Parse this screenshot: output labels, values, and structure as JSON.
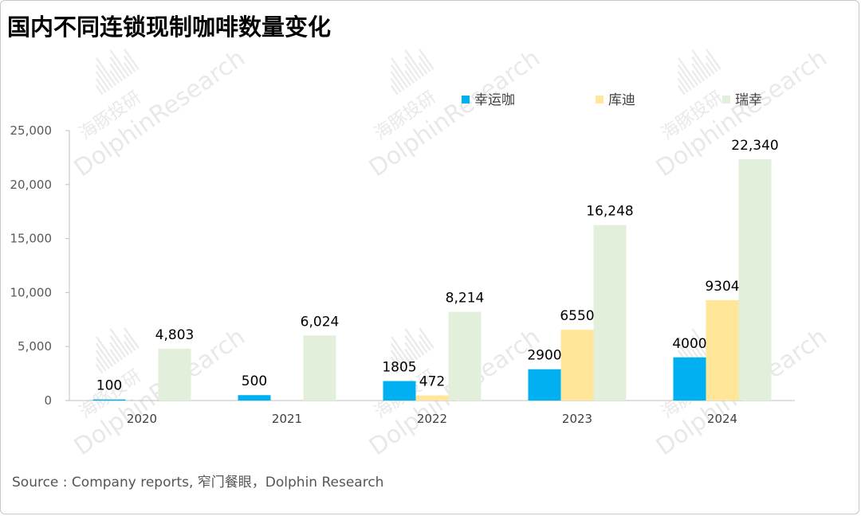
{
  "title": "国内不同连锁现制咖啡数量变化",
  "source": "Source : Company reports, 窄门餐眼，Dolphin Research",
  "watermark": {
    "cn": "海豚投研",
    "en": "DolphinResearch"
  },
  "chart_data": {
    "type": "bar",
    "title": "国内不同连锁现制咖啡数量变化",
    "categories": [
      "2020",
      "2021",
      "2022",
      "2023",
      "2024"
    ],
    "ylim": [
      0,
      25000
    ],
    "yticks": [
      0,
      5000,
      10000,
      15000,
      20000,
      25000
    ],
    "ytick_labels": [
      "0",
      "5,000",
      "10,000",
      "15,000",
      "20,000",
      "25,000"
    ],
    "grid": false,
    "legend_position": "top-right",
    "series": [
      {
        "name": "幸运咖",
        "color": "#00b0f0",
        "values": [
          100,
          500,
          1805,
          2900,
          4000
        ],
        "labels": [
          "100",
          "500",
          "1805",
          "2900",
          "4000"
        ]
      },
      {
        "name": "库迪",
        "color": "#ffe699",
        "values": [
          null,
          null,
          472,
          6550,
          9304
        ],
        "labels": [
          "",
          "",
          "472",
          "6550",
          "9304"
        ]
      },
      {
        "name": "瑞幸",
        "color": "#e2efda",
        "values": [
          4803,
          6024,
          8214,
          16248,
          22340
        ],
        "labels": [
          "4,803",
          "6,024",
          "8,214",
          "16,248",
          "22,340"
        ]
      }
    ]
  }
}
